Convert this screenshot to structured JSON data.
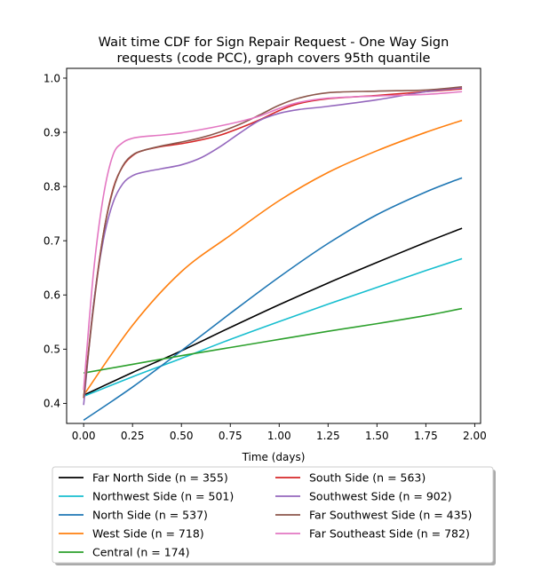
{
  "chart_data": {
    "type": "line",
    "title": "Wait time CDF for Sign Repair Request - One Way Sign requests (code PCC), graph covers 95th quantile",
    "title_lines": [
      "Wait time CDF for Sign Repair Request - One Way Sign",
      "requests (code PCC), graph covers 95th quantile"
    ],
    "xlabel": "Time (days)",
    "ylabel": "",
    "xlim": [
      -0.087,
      2.03
    ],
    "ylim": [
      0.363,
      1.018
    ],
    "xticks": [
      0.0,
      0.25,
      0.5,
      0.75,
      1.0,
      1.25,
      1.5,
      1.75,
      2.0
    ],
    "xtick_labels": [
      "0.00",
      "0.25",
      "0.50",
      "0.75",
      "1.00",
      "1.25",
      "1.50",
      "1.75",
      "2.00"
    ],
    "yticks": [
      0.4,
      0.5,
      0.6,
      0.7,
      0.8,
      0.9,
      1.0
    ],
    "ytick_labels": [
      "0.4",
      "0.5",
      "0.6",
      "0.7",
      "0.8",
      "0.9",
      "1.0"
    ],
    "grid": false,
    "legend_position": "below",
    "series": [
      {
        "name": "Far North Side (n = 355)",
        "color": "#000000",
        "x": [
          0,
          0.25,
          0.5,
          0.75,
          1.0,
          1.25,
          1.5,
          1.75,
          1.935
        ],
        "y": [
          0.415,
          0.457,
          0.497,
          0.54,
          0.582,
          0.622,
          0.66,
          0.697,
          0.723
        ]
      },
      {
        "name": "Northwest Side (n = 501)",
        "color": "#17becf",
        "x": [
          0,
          0.25,
          0.5,
          0.75,
          1.0,
          1.25,
          1.5,
          1.75,
          1.935
        ],
        "y": [
          0.413,
          0.449,
          0.483,
          0.518,
          0.551,
          0.583,
          0.614,
          0.645,
          0.667
        ]
      },
      {
        "name": "North Side (n = 537)",
        "color": "#1f77b4",
        "x": [
          0,
          0.25,
          0.5,
          0.75,
          1.0,
          1.25,
          1.5,
          1.75,
          1.935
        ],
        "y": [
          0.369,
          0.43,
          0.497,
          0.566,
          0.633,
          0.695,
          0.748,
          0.79,
          0.816
        ]
      },
      {
        "name": "West Side (n = 718)",
        "color": "#ff7f0e",
        "x": [
          0,
          0.25,
          0.5,
          0.75,
          1.0,
          1.25,
          1.5,
          1.75,
          1.935
        ],
        "y": [
          0.415,
          0.544,
          0.643,
          0.71,
          0.774,
          0.826,
          0.866,
          0.9,
          0.922
        ]
      },
      {
        "name": "Central (n = 174)",
        "color": "#2ca02c",
        "x": [
          0,
          0.25,
          0.5,
          0.75,
          1.0,
          1.25,
          1.5,
          1.75,
          1.935
        ],
        "y": [
          0.456,
          0.472,
          0.488,
          0.503,
          0.518,
          0.533,
          0.547,
          0.562,
          0.575
        ]
      },
      {
        "name": "South Side (n = 563)",
        "color": "#d62728",
        "x": [
          0,
          0.05,
          0.1,
          0.15,
          0.2,
          0.25,
          0.3,
          0.4,
          0.5,
          0.6,
          0.7,
          0.8,
          0.9,
          1.0,
          1.1,
          1.25,
          1.5,
          1.75,
          1.935
        ],
        "y": [
          0.41,
          0.58,
          0.71,
          0.795,
          0.837,
          0.857,
          0.866,
          0.874,
          0.879,
          0.886,
          0.895,
          0.908,
          0.923,
          0.94,
          0.953,
          0.962,
          0.968,
          0.975,
          0.98
        ]
      },
      {
        "name": "Southwest Side (n = 902)",
        "color": "#9467bd",
        "x": [
          0,
          0.05,
          0.1,
          0.15,
          0.2,
          0.25,
          0.3,
          0.4,
          0.5,
          0.6,
          0.7,
          0.8,
          0.9,
          1.0,
          1.1,
          1.25,
          1.5,
          1.75,
          1.935
        ],
        "y": [
          0.397,
          0.58,
          0.7,
          0.77,
          0.805,
          0.82,
          0.826,
          0.833,
          0.84,
          0.853,
          0.874,
          0.899,
          0.922,
          0.935,
          0.942,
          0.948,
          0.96,
          0.975,
          0.982
        ]
      },
      {
        "name": "Far Southwest Side (n = 435)",
        "color": "#8c564b",
        "x": [
          0,
          0.05,
          0.1,
          0.15,
          0.2,
          0.25,
          0.3,
          0.4,
          0.5,
          0.6,
          0.7,
          0.8,
          0.9,
          1.0,
          1.1,
          1.25,
          1.5,
          1.75,
          1.935
        ],
        "y": [
          0.41,
          0.575,
          0.71,
          0.793,
          0.838,
          0.858,
          0.866,
          0.875,
          0.882,
          0.89,
          0.901,
          0.915,
          0.932,
          0.95,
          0.963,
          0.973,
          0.976,
          0.978,
          0.984
        ]
      },
      {
        "name": "Far Southeast Side (n = 782)",
        "color": "#e377c2",
        "x": [
          0,
          0.05,
          0.1,
          0.15,
          0.2,
          0.25,
          0.3,
          0.4,
          0.5,
          0.6,
          0.7,
          0.8,
          0.9,
          1.0,
          1.1,
          1.25,
          1.5,
          1.75,
          1.935
        ],
        "y": [
          0.425,
          0.64,
          0.78,
          0.858,
          0.881,
          0.889,
          0.892,
          0.895,
          0.899,
          0.905,
          0.912,
          0.92,
          0.93,
          0.944,
          0.955,
          0.963,
          0.967,
          0.97,
          0.975
        ]
      }
    ]
  }
}
